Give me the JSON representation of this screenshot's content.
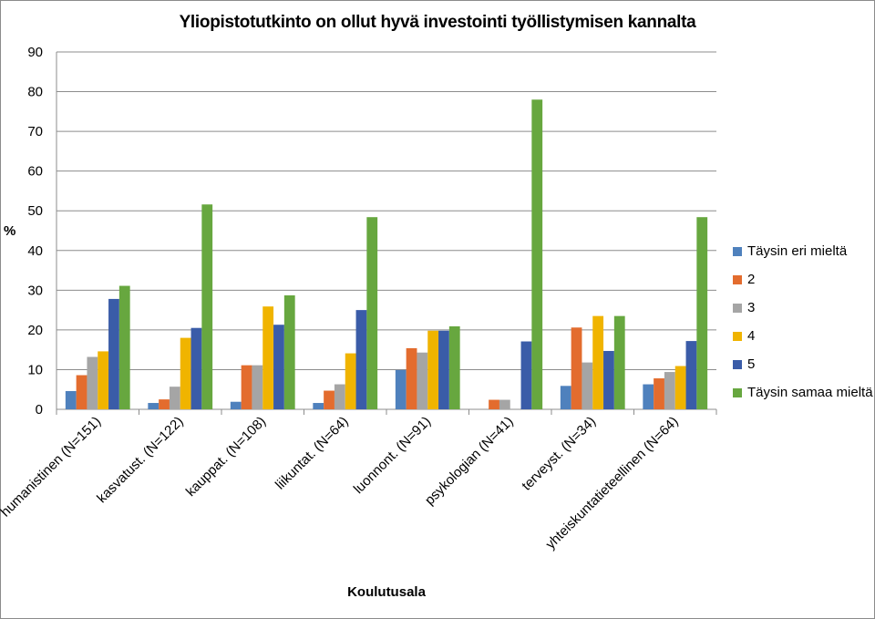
{
  "chart_data": {
    "type": "bar",
    "title": "Yliopistotutkinto on ollut hyvä investointi työllistymisen kannalta",
    "xlabel": "Koulutusala",
    "ylabel": "%",
    "ylim": [
      0,
      90
    ],
    "yticks": [
      "0",
      "10",
      "20",
      "30",
      "40",
      "50",
      "60",
      "70",
      "80",
      "90"
    ],
    "grid": true,
    "legend_position": "right",
    "categories": [
      "humanistinen (N=151)",
      "kasvatust. (N=122)",
      "kauppat. (N=108)",
      "liikuntat. (N=64)",
      "luonnont. (N=91)",
      "psykologian (N=41)",
      "terveyst. (N=34)",
      "yhteiskuntatieteellinen (N=64)"
    ],
    "series": [
      {
        "name": "Täysin eri mieltä",
        "color": "#4f81bd",
        "values": [
          4.6,
          1.6,
          1.9,
          1.6,
          9.9,
          0,
          5.9,
          6.3
        ]
      },
      {
        "name": "2",
        "color": "#e36c2e",
        "values": [
          8.6,
          2.5,
          11.1,
          4.7,
          15.4,
          2.4,
          20.6,
          7.8
        ]
      },
      {
        "name": "3",
        "color": "#a5a5a5",
        "values": [
          13.2,
          5.7,
          11.1,
          6.3,
          14.3,
          2.4,
          11.8,
          9.4
        ]
      },
      {
        "name": "4",
        "color": "#f0b400",
        "values": [
          14.6,
          18.0,
          25.9,
          14.1,
          19.8,
          0,
          23.5,
          10.9
        ]
      },
      {
        "name": "5",
        "color": "#3a5ca8",
        "values": [
          27.8,
          20.5,
          21.3,
          25.0,
          19.8,
          17.1,
          14.7,
          17.2
        ]
      },
      {
        "name": "Täysin samaa mieltä",
        "color": "#67a73f",
        "values": [
          31.1,
          51.6,
          28.7,
          48.4,
          20.9,
          78.0,
          23.5,
          48.4
        ]
      }
    ]
  }
}
